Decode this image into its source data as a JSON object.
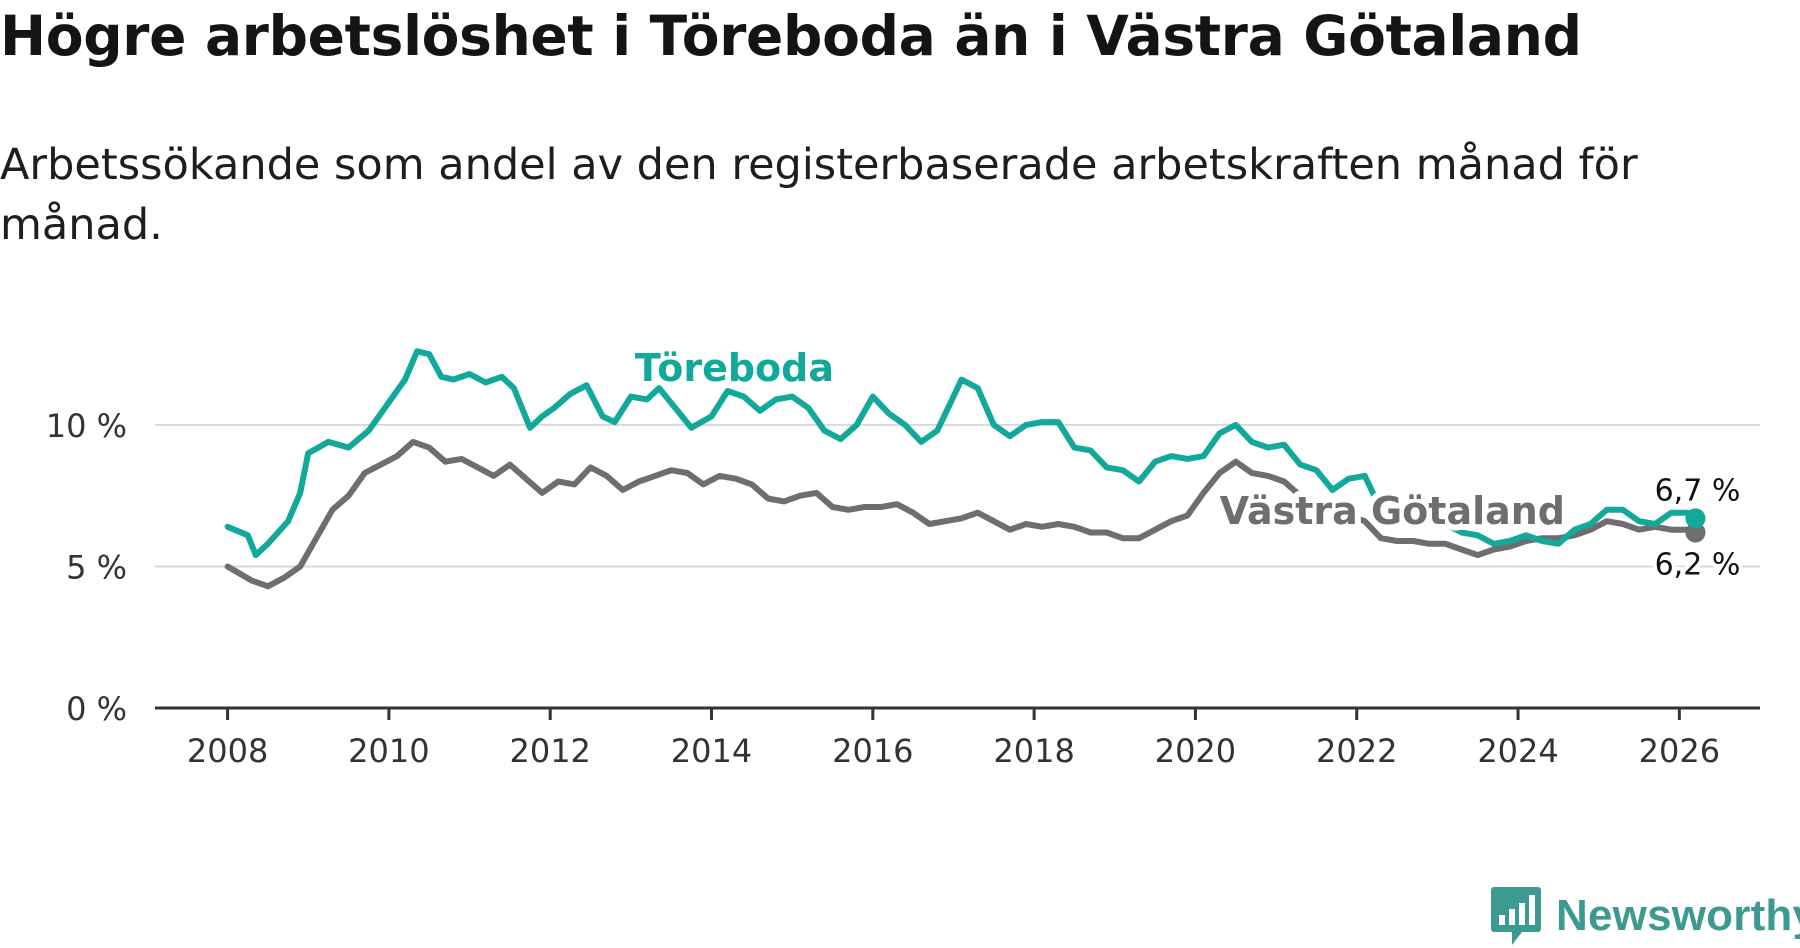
{
  "header": {
    "title": "Högre arbetslöshet i Töreboda än i Västra Götaland",
    "subtitle": "Arbetssökande som andel av den registerbaserade arbetskraften månad för månad."
  },
  "logo": {
    "text": "Newsworthy"
  },
  "colors": {
    "toreboda": "#12a89a",
    "vg": "#6e6e72",
    "grid": "#d9d9d9",
    "axis": "#333333"
  },
  "chart_data": {
    "type": "line",
    "title": "Högre arbetslöshet i Töreboda än i Västra Götaland",
    "xlabel": "",
    "ylabel": "",
    "xlim": [
      2007.1,
      2027.0
    ],
    "ylim": [
      0,
      13
    ],
    "x_ticks": [
      2008,
      2010,
      2012,
      2014,
      2016,
      2018,
      2020,
      2022,
      2024,
      2026
    ],
    "x_tick_labels": [
      "2008",
      "2010",
      "2012",
      "2014",
      "2016",
      "2018",
      "2020",
      "2022",
      "2024",
      "2026"
    ],
    "y_ticks": [
      0,
      5,
      10
    ],
    "y_tick_labels": [
      "0 %",
      "5 %",
      "10 %"
    ],
    "grid": true,
    "series": [
      {
        "name": "Töreboda",
        "label_anchor": {
          "x": 2013.05,
          "y": 11.55
        },
        "end_label": "6,7 %",
        "points": [
          [
            2008.0,
            6.4
          ],
          [
            2008.25,
            6.1
          ],
          [
            2008.35,
            5.4
          ],
          [
            2008.5,
            5.8
          ],
          [
            2008.75,
            6.6
          ],
          [
            2008.9,
            7.6
          ],
          [
            2009.0,
            9.0
          ],
          [
            2009.25,
            9.4
          ],
          [
            2009.5,
            9.2
          ],
          [
            2009.75,
            9.8
          ],
          [
            2010.0,
            10.8
          ],
          [
            2010.2,
            11.6
          ],
          [
            2010.35,
            12.6
          ],
          [
            2010.5,
            12.5
          ],
          [
            2010.65,
            11.7
          ],
          [
            2010.8,
            11.6
          ],
          [
            2011.0,
            11.8
          ],
          [
            2011.2,
            11.5
          ],
          [
            2011.4,
            11.7
          ],
          [
            2011.55,
            11.3
          ],
          [
            2011.75,
            9.9
          ],
          [
            2011.9,
            10.3
          ],
          [
            2012.05,
            10.6
          ],
          [
            2012.25,
            11.1
          ],
          [
            2012.45,
            11.4
          ],
          [
            2012.65,
            10.3
          ],
          [
            2012.8,
            10.1
          ],
          [
            2013.0,
            11.0
          ],
          [
            2013.2,
            10.9
          ],
          [
            2013.35,
            11.3
          ],
          [
            2013.55,
            10.6
          ],
          [
            2013.75,
            9.9
          ],
          [
            2014.0,
            10.3
          ],
          [
            2014.2,
            11.2
          ],
          [
            2014.4,
            11.0
          ],
          [
            2014.6,
            10.5
          ],
          [
            2014.8,
            10.9
          ],
          [
            2015.0,
            11.0
          ],
          [
            2015.2,
            10.6
          ],
          [
            2015.4,
            9.8
          ],
          [
            2015.6,
            9.5
          ],
          [
            2015.8,
            10.0
          ],
          [
            2016.0,
            11.0
          ],
          [
            2016.2,
            10.4
          ],
          [
            2016.4,
            10.0
          ],
          [
            2016.6,
            9.4
          ],
          [
            2016.8,
            9.8
          ],
          [
            2017.0,
            11.0
          ],
          [
            2017.1,
            11.6
          ],
          [
            2017.3,
            11.3
          ],
          [
            2017.5,
            10.0
          ],
          [
            2017.7,
            9.6
          ],
          [
            2017.9,
            10.0
          ],
          [
            2018.1,
            10.1
          ],
          [
            2018.3,
            10.1
          ],
          [
            2018.5,
            9.2
          ],
          [
            2018.7,
            9.1
          ],
          [
            2018.9,
            8.5
          ],
          [
            2019.1,
            8.4
          ],
          [
            2019.3,
            8.0
          ],
          [
            2019.5,
            8.7
          ],
          [
            2019.7,
            8.9
          ],
          [
            2019.9,
            8.8
          ],
          [
            2020.1,
            8.9
          ],
          [
            2020.3,
            9.7
          ],
          [
            2020.5,
            10.0
          ],
          [
            2020.7,
            9.4
          ],
          [
            2020.9,
            9.2
          ],
          [
            2021.1,
            9.3
          ],
          [
            2021.3,
            8.6
          ],
          [
            2021.5,
            8.4
          ],
          [
            2021.7,
            7.7
          ],
          [
            2021.9,
            8.1
          ],
          [
            2022.1,
            8.2
          ],
          [
            2022.3,
            7.0
          ],
          [
            2022.5,
            6.7
          ],
          [
            2022.7,
            6.9
          ],
          [
            2022.9,
            6.9
          ],
          [
            2023.1,
            6.5
          ],
          [
            2023.3,
            6.2
          ],
          [
            2023.5,
            6.1
          ],
          [
            2023.7,
            5.8
          ],
          [
            2023.9,
            5.9
          ],
          [
            2024.1,
            6.1
          ],
          [
            2024.3,
            5.9
          ],
          [
            2024.5,
            5.8
          ],
          [
            2024.7,
            6.3
          ],
          [
            2024.9,
            6.5
          ],
          [
            2025.1,
            7.0
          ],
          [
            2025.3,
            7.0
          ],
          [
            2025.5,
            6.6
          ],
          [
            2025.7,
            6.5
          ],
          [
            2025.9,
            6.9
          ],
          [
            2026.1,
            6.9
          ],
          [
            2026.2,
            6.7
          ]
        ]
      },
      {
        "name": "Västra Götaland",
        "label_anchor": {
          "x": 2020.3,
          "y": 6.5
        },
        "end_label": "6,2 %",
        "points": [
          [
            2008.0,
            5.0
          ],
          [
            2008.3,
            4.5
          ],
          [
            2008.5,
            4.3
          ],
          [
            2008.7,
            4.6
          ],
          [
            2008.9,
            5.0
          ],
          [
            2009.1,
            6.0
          ],
          [
            2009.3,
            7.0
          ],
          [
            2009.5,
            7.5
          ],
          [
            2009.7,
            8.3
          ],
          [
            2009.9,
            8.6
          ],
          [
            2010.1,
            8.9
          ],
          [
            2010.3,
            9.4
          ],
          [
            2010.5,
            9.2
          ],
          [
            2010.7,
            8.7
          ],
          [
            2010.9,
            8.8
          ],
          [
            2011.1,
            8.5
          ],
          [
            2011.3,
            8.2
          ],
          [
            2011.5,
            8.6
          ],
          [
            2011.7,
            8.1
          ],
          [
            2011.9,
            7.6
          ],
          [
            2012.1,
            8.0
          ],
          [
            2012.3,
            7.9
          ],
          [
            2012.5,
            8.5
          ],
          [
            2012.7,
            8.2
          ],
          [
            2012.9,
            7.7
          ],
          [
            2013.1,
            8.0
          ],
          [
            2013.3,
            8.2
          ],
          [
            2013.5,
            8.4
          ],
          [
            2013.7,
            8.3
          ],
          [
            2013.9,
            7.9
          ],
          [
            2014.1,
            8.2
          ],
          [
            2014.3,
            8.1
          ],
          [
            2014.5,
            7.9
          ],
          [
            2014.7,
            7.4
          ],
          [
            2014.9,
            7.3
          ],
          [
            2015.1,
            7.5
          ],
          [
            2015.3,
            7.6
          ],
          [
            2015.5,
            7.1
          ],
          [
            2015.7,
            7.0
          ],
          [
            2015.9,
            7.1
          ],
          [
            2016.1,
            7.1
          ],
          [
            2016.3,
            7.2
          ],
          [
            2016.5,
            6.9
          ],
          [
            2016.7,
            6.5
          ],
          [
            2016.9,
            6.6
          ],
          [
            2017.1,
            6.7
          ],
          [
            2017.3,
            6.9
          ],
          [
            2017.5,
            6.6
          ],
          [
            2017.7,
            6.3
          ],
          [
            2017.9,
            6.5
          ],
          [
            2018.1,
            6.4
          ],
          [
            2018.3,
            6.5
          ],
          [
            2018.5,
            6.4
          ],
          [
            2018.7,
            6.2
          ],
          [
            2018.9,
            6.2
          ],
          [
            2019.1,
            6.0
          ],
          [
            2019.3,
            6.0
          ],
          [
            2019.5,
            6.3
          ],
          [
            2019.7,
            6.6
          ],
          [
            2019.9,
            6.8
          ],
          [
            2020.1,
            7.6
          ],
          [
            2020.3,
            8.3
          ],
          [
            2020.5,
            8.7
          ],
          [
            2020.7,
            8.3
          ],
          [
            2020.9,
            8.2
          ],
          [
            2021.1,
            8.0
          ],
          [
            2021.3,
            7.5
          ],
          [
            2021.5,
            7.3
          ],
          [
            2021.7,
            7.0
          ],
          [
            2021.9,
            6.8
          ],
          [
            2022.1,
            6.6
          ],
          [
            2022.3,
            6.0
          ],
          [
            2022.5,
            5.9
          ],
          [
            2022.7,
            5.9
          ],
          [
            2022.9,
            5.8
          ],
          [
            2023.1,
            5.8
          ],
          [
            2023.3,
            5.6
          ],
          [
            2023.5,
            5.4
          ],
          [
            2023.7,
            5.6
          ],
          [
            2023.9,
            5.7
          ],
          [
            2024.1,
            5.9
          ],
          [
            2024.3,
            6.0
          ],
          [
            2024.5,
            6.0
          ],
          [
            2024.7,
            6.1
          ],
          [
            2024.9,
            6.3
          ],
          [
            2025.1,
            6.6
          ],
          [
            2025.3,
            6.5
          ],
          [
            2025.5,
            6.3
          ],
          [
            2025.7,
            6.4
          ],
          [
            2025.9,
            6.3
          ],
          [
            2026.1,
            6.3
          ],
          [
            2026.2,
            6.2
          ]
        ]
      }
    ]
  }
}
